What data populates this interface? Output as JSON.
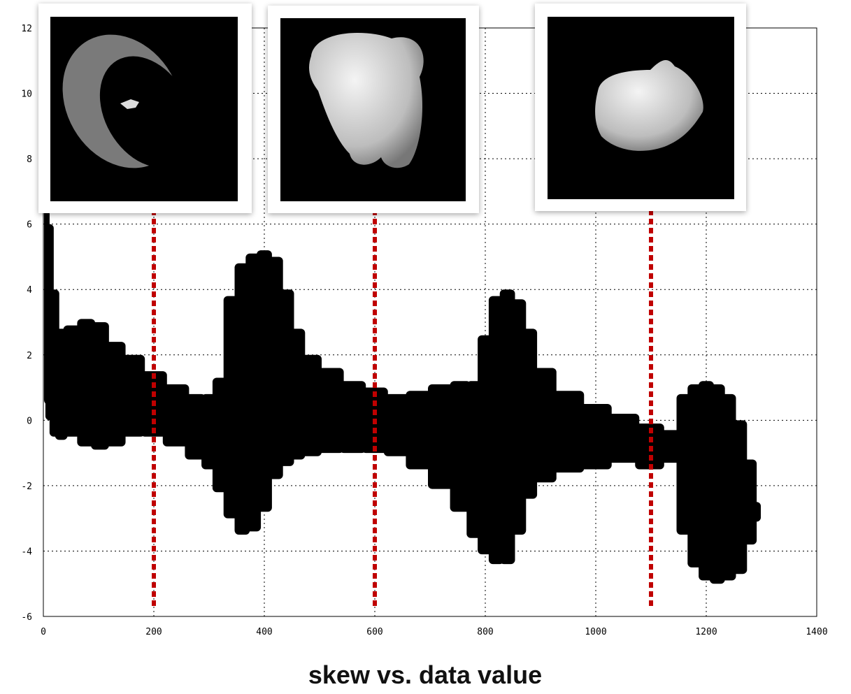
{
  "chart_data": {
    "type": "scatter",
    "title": "skew vs. data value",
    "xlim": [
      0,
      1400
    ],
    "xticks": [
      0,
      200,
      400,
      600,
      800,
      1000,
      1200,
      1400
    ],
    "ylim": [
      -6,
      12
    ],
    "yticks": [
      -6,
      -4,
      -2,
      0,
      2,
      4,
      6,
      8,
      10,
      12
    ],
    "grid": true,
    "series": [
      {
        "color": "#000000",
        "x": [
          5,
          10,
          20,
          30,
          50,
          80,
          100,
          130,
          160,
          200,
          240,
          280,
          300,
          320,
          340,
          360,
          380,
          400,
          420,
          440,
          460,
          480,
          520,
          560,
          600,
          640,
          680,
          720,
          760,
          780,
          800,
          820,
          840,
          860,
          880,
          900,
          950,
          1000,
          1050,
          1100,
          1140,
          1160,
          1180,
          1200,
          1220,
          1240,
          1260,
          1280,
          1295
        ],
        "high": [
          7,
          6,
          4,
          2.8,
          2.9,
          3.1,
          3.0,
          2.4,
          2.0,
          1.5,
          1.1,
          0.8,
          0.8,
          1.3,
          3.8,
          4.8,
          5.1,
          5.2,
          5.0,
          4.0,
          2.8,
          2.0,
          1.6,
          1.2,
          1.0,
          0.8,
          0.9,
          1.1,
          1.2,
          1.2,
          2.6,
          3.8,
          4.0,
          3.7,
          2.8,
          1.6,
          0.9,
          0.5,
          0.2,
          -0.1,
          -0.3,
          0.8,
          1.1,
          1.2,
          1.1,
          0.8,
          0.0,
          -1.2,
          -2.5
        ],
        "low": [
          0.5,
          0,
          -0.5,
          -0.6,
          -0.5,
          -0.8,
          -0.9,
          -0.8,
          -0.5,
          -0.5,
          -0.8,
          -1.2,
          -1.5,
          -2.2,
          -3.0,
          -3.5,
          -3.4,
          -2.8,
          -1.8,
          -1.4,
          -1.2,
          -1.1,
          -1.0,
          -1.0,
          -1.0,
          -1.1,
          -1.5,
          -2.1,
          -2.8,
          -3.6,
          -4.1,
          -4.4,
          -4.4,
          -3.5,
          -2.4,
          -1.9,
          -1.6,
          -1.5,
          -1.3,
          -1.5,
          -1.3,
          -3.5,
          -4.5,
          -4.9,
          -5.0,
          -4.9,
          -4.7,
          -3.8,
          -3.1
        ]
      }
    ],
    "vlines": {
      "color": "#c00000",
      "x": [
        200,
        600,
        1100
      ]
    }
  }
}
